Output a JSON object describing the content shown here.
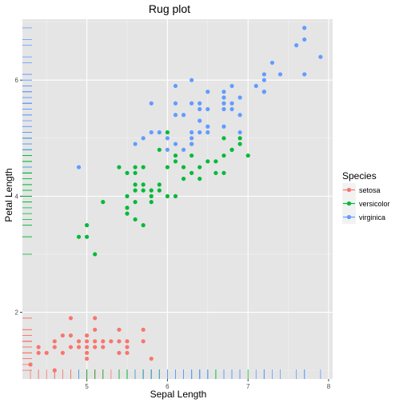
{
  "chart_data": {
    "type": "scatter",
    "title": "Rug plot",
    "xlabel": "Sepal Length",
    "ylabel": "Petal Length",
    "xlim": [
      4.2,
      8.05
    ],
    "ylim": [
      0.85,
      7.05
    ],
    "x_ticks": [
      5,
      6,
      7,
      8
    ],
    "y_ticks": [
      2,
      4,
      6
    ],
    "grid": true,
    "rug": true,
    "legend": {
      "title": "Species",
      "position": "right"
    },
    "colors": {
      "setosa": "#F8766D",
      "versicolor": "#00BA38",
      "virginica": "#619CFF"
    },
    "series": [
      {
        "name": "setosa",
        "points": [
          [
            4.3,
            1.1
          ],
          [
            4.4,
            1.3
          ],
          [
            4.4,
            1.4
          ],
          [
            4.5,
            1.3
          ],
          [
            4.6,
            1.4
          ],
          [
            4.6,
            1.0
          ],
          [
            4.6,
            1.5
          ],
          [
            4.7,
            1.3
          ],
          [
            4.7,
            1.6
          ],
          [
            4.8,
            1.4
          ],
          [
            4.8,
            1.6
          ],
          [
            4.8,
            1.9
          ],
          [
            4.9,
            1.4
          ],
          [
            4.9,
            1.5
          ],
          [
            5.0,
            1.2
          ],
          [
            5.0,
            1.3
          ],
          [
            5.0,
            1.4
          ],
          [
            5.0,
            1.5
          ],
          [
            5.0,
            1.6
          ],
          [
            5.1,
            1.4
          ],
          [
            5.1,
            1.5
          ],
          [
            5.1,
            1.7
          ],
          [
            5.1,
            1.9
          ],
          [
            5.2,
            1.4
          ],
          [
            5.2,
            1.5
          ],
          [
            5.3,
            1.5
          ],
          [
            5.4,
            1.3
          ],
          [
            5.4,
            1.5
          ],
          [
            5.4,
            1.7
          ],
          [
            5.5,
            1.3
          ],
          [
            5.5,
            1.4
          ],
          [
            5.7,
            1.5
          ],
          [
            5.7,
            1.7
          ],
          [
            5.8,
            1.2
          ],
          [
            5.5,
            1.5
          ]
        ]
      },
      {
        "name": "versicolor",
        "points": [
          [
            4.9,
            3.3
          ],
          [
            5.0,
            3.3
          ],
          [
            5.0,
            3.5
          ],
          [
            5.1,
            3.0
          ],
          [
            5.2,
            3.9
          ],
          [
            5.4,
            4.5
          ],
          [
            5.5,
            4.0
          ],
          [
            5.5,
            4.4
          ],
          [
            5.5,
            3.7
          ],
          [
            5.5,
            3.8
          ],
          [
            5.6,
            3.6
          ],
          [
            5.6,
            3.9
          ],
          [
            5.6,
            4.1
          ],
          [
            5.6,
            4.2
          ],
          [
            5.6,
            4.5
          ],
          [
            5.7,
            3.5
          ],
          [
            5.7,
            4.1
          ],
          [
            5.7,
            4.2
          ],
          [
            5.7,
            4.5
          ],
          [
            5.8,
            3.9
          ],
          [
            5.8,
            4.0
          ],
          [
            5.8,
            4.1
          ],
          [
            5.9,
            4.2
          ],
          [
            5.9,
            4.8
          ],
          [
            6.0,
            4.0
          ],
          [
            6.0,
            4.5
          ],
          [
            6.0,
            5.1
          ],
          [
            6.1,
            4.0
          ],
          [
            6.1,
            4.7
          ],
          [
            6.2,
            4.3
          ],
          [
            6.2,
            4.5
          ],
          [
            6.3,
            4.4
          ],
          [
            6.3,
            4.7
          ],
          [
            6.3,
            4.9
          ],
          [
            6.4,
            4.3
          ],
          [
            6.4,
            4.5
          ],
          [
            6.5,
            4.6
          ],
          [
            6.6,
            4.4
          ],
          [
            6.6,
            4.6
          ],
          [
            6.7,
            4.4
          ],
          [
            6.7,
            4.7
          ],
          [
            6.7,
            5.0
          ],
          [
            6.8,
            4.8
          ],
          [
            6.9,
            4.9
          ],
          [
            7.0,
            4.7
          ],
          [
            6.1,
            4.6
          ],
          [
            5.6,
            4.4
          ],
          [
            6.9,
            5.0
          ],
          [
            6.8,
            4.8
          ],
          [
            5.9,
            4.1
          ]
        ]
      },
      {
        "name": "virginica",
        "points": [
          [
            4.9,
            4.5
          ],
          [
            5.6,
            4.9
          ],
          [
            5.7,
            5.0
          ],
          [
            5.8,
            5.1
          ],
          [
            5.9,
            5.1
          ],
          [
            6.0,
            4.8
          ],
          [
            6.0,
            5.0
          ],
          [
            6.1,
            4.9
          ],
          [
            6.1,
            5.6
          ],
          [
            6.2,
            5.4
          ],
          [
            6.3,
            5.0
          ],
          [
            6.3,
            5.1
          ],
          [
            6.3,
            5.6
          ],
          [
            6.3,
            6.0
          ],
          [
            6.4,
            5.3
          ],
          [
            6.4,
            5.5
          ],
          [
            6.4,
            5.6
          ],
          [
            6.5,
            5.1
          ],
          [
            6.5,
            5.2
          ],
          [
            6.5,
            5.5
          ],
          [
            6.5,
            5.8
          ],
          [
            6.7,
            5.2
          ],
          [
            6.7,
            5.6
          ],
          [
            6.7,
            5.7
          ],
          [
            6.7,
            5.8
          ],
          [
            6.8,
            5.5
          ],
          [
            6.8,
            5.9
          ],
          [
            6.9,
            5.1
          ],
          [
            6.9,
            5.4
          ],
          [
            6.9,
            5.7
          ],
          [
            7.1,
            5.9
          ],
          [
            7.2,
            5.8
          ],
          [
            7.2,
            6.0
          ],
          [
            7.2,
            6.1
          ],
          [
            7.3,
            6.3
          ],
          [
            7.4,
            6.1
          ],
          [
            7.6,
            6.6
          ],
          [
            7.7,
            6.1
          ],
          [
            7.7,
            6.7
          ],
          [
            7.7,
            6.9
          ],
          [
            7.9,
            6.4
          ],
          [
            6.2,
            4.8
          ],
          [
            6.1,
            5.4
          ],
          [
            5.8,
            5.6
          ],
          [
            6.1,
            5.9
          ],
          [
            6.3,
            4.9
          ],
          [
            6.4,
            5.1
          ],
          [
            6.8,
            5.6
          ],
          [
            7.2,
            5.8
          ],
          [
            6.7,
            5.5
          ]
        ]
      }
    ]
  }
}
